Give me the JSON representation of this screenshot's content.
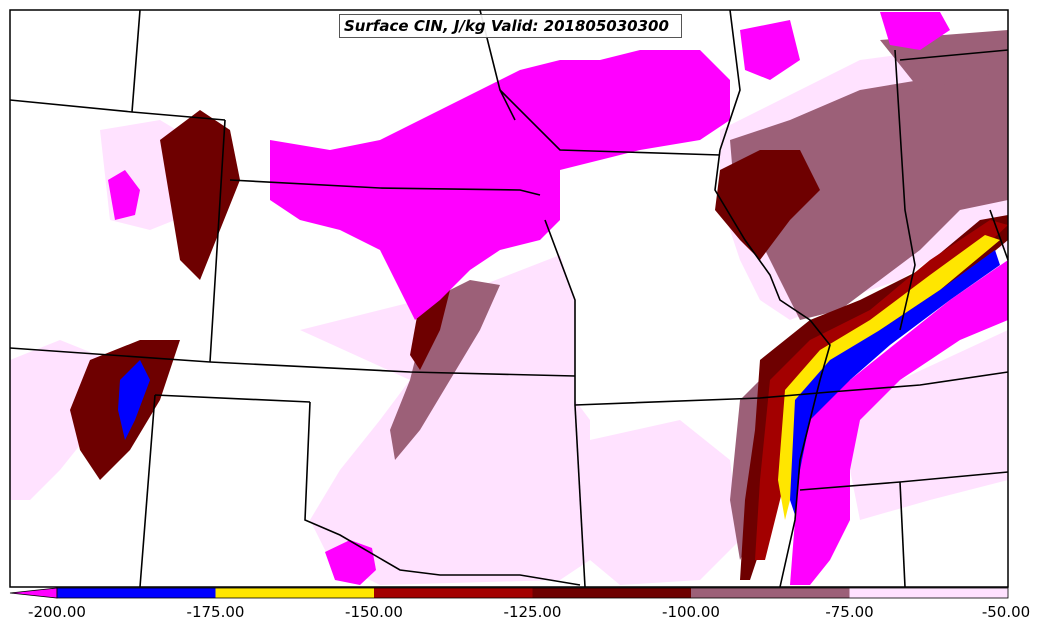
{
  "title": "Surface CIN, J/kg Valid: 201805030300",
  "colorbar": {
    "bins": [
      {
        "color": "#ff00ff"
      },
      {
        "color": "#0000ff"
      },
      {
        "color": "#ffe600"
      },
      {
        "color": "#a30000"
      },
      {
        "color": "#6e0000"
      },
      {
        "color": "#9c6078"
      },
      {
        "color": "#ffe2ff"
      }
    ],
    "tick_labels": [
      "-200.00",
      "-175.00",
      "-150.00",
      "-125.00",
      "-100.00",
      "-75.00",
      "-50.00"
    ]
  },
  "legend_colors": {
    "magenta": "#ff00ff",
    "blue": "#0000ff",
    "yellow": "#ffe600",
    "red": "#a30000",
    "darkred": "#6e0000",
    "mauve": "#9c6078",
    "pink": "#ffe2ff"
  }
}
